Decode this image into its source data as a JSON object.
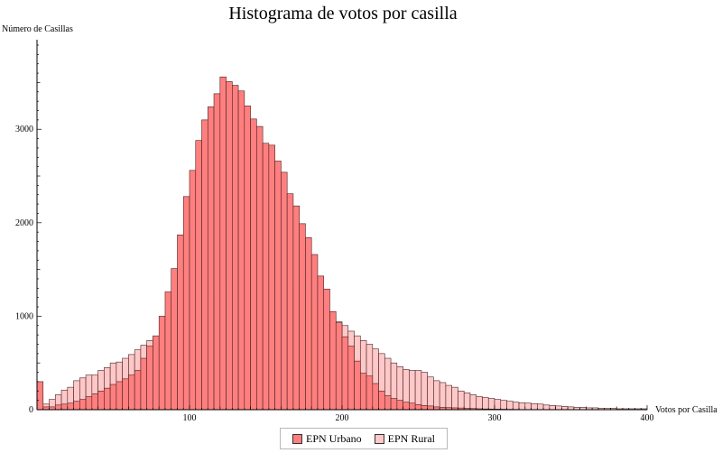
{
  "chart_data": {
    "type": "bar",
    "title": "Histograma de votos por casilla",
    "xlabel": "Votos por Casilla",
    "ylabel": "Número de Casillas",
    "xlim": [
      0,
      400
    ],
    "ylim": [
      0,
      3900
    ],
    "bin_width": 4,
    "x_ticks": [
      100,
      200,
      300,
      400
    ],
    "y_ticks": [
      0,
      1000,
      2000,
      3000
    ],
    "x_tick_labels": [
      "100",
      "200",
      "300",
      "400"
    ],
    "y_tick_labels": [
      "0",
      "1000",
      "2000",
      "3000"
    ],
    "grid": false,
    "legend_position": "bottom",
    "series": [
      {
        "name": "EPN Urbano",
        "color": "#ff7f7f",
        "bin_start": 0,
        "values": [
          300,
          30,
          30,
          50,
          60,
          70,
          90,
          110,
          140,
          170,
          200,
          230,
          270,
          300,
          330,
          370,
          420,
          550,
          680,
          790,
          1000,
          1260,
          1510,
          1870,
          2280,
          2560,
          2880,
          3100,
          3240,
          3380,
          3560,
          3510,
          3470,
          3410,
          3250,
          3110,
          3030,
          2850,
          2830,
          2660,
          2540,
          2310,
          2180,
          1990,
          1840,
          1660,
          1430,
          1290,
          1050,
          930,
          780,
          680,
          520,
          390,
          360,
          280,
          200,
          150,
          120,
          100,
          80,
          70,
          55,
          45,
          40,
          30,
          25,
          22,
          20,
          18,
          15,
          12,
          10,
          8,
          7,
          6,
          5,
          4,
          3,
          2,
          2,
          2,
          2,
          2,
          2,
          2,
          1,
          1,
          1,
          1,
          1,
          1,
          1,
          1,
          1,
          1,
          1,
          1,
          1,
          1
        ]
      },
      {
        "name": "EPN Rural",
        "color": "#ffc8c8",
        "bin_start": 0,
        "values": [
          170,
          60,
          110,
          160,
          210,
          240,
          310,
          340,
          370,
          370,
          420,
          450,
          500,
          510,
          550,
          590,
          640,
          690,
          740,
          770,
          790,
          850,
          890,
          940,
          1000,
          1060,
          1100,
          1160,
          1200,
          1250,
          1310,
          1330,
          1320,
          1300,
          1330,
          1350,
          1340,
          1330,
          1320,
          1290,
          1280,
          1270,
          1250,
          1220,
          1190,
          1150,
          1100,
          1050,
          990,
          940,
          900,
          840,
          790,
          740,
          700,
          650,
          600,
          550,
          500,
          460,
          430,
          420,
          420,
          400,
          350,
          310,
          290,
          260,
          240,
          200,
          180,
          160,
          140,
          130,
          120,
          110,
          100,
          90,
          80,
          75,
          70,
          65,
          60,
          50,
          45,
          40,
          35,
          30,
          25,
          25,
          20,
          20,
          15,
          15,
          15,
          10,
          10,
          10,
          10,
          10
        ]
      }
    ]
  }
}
